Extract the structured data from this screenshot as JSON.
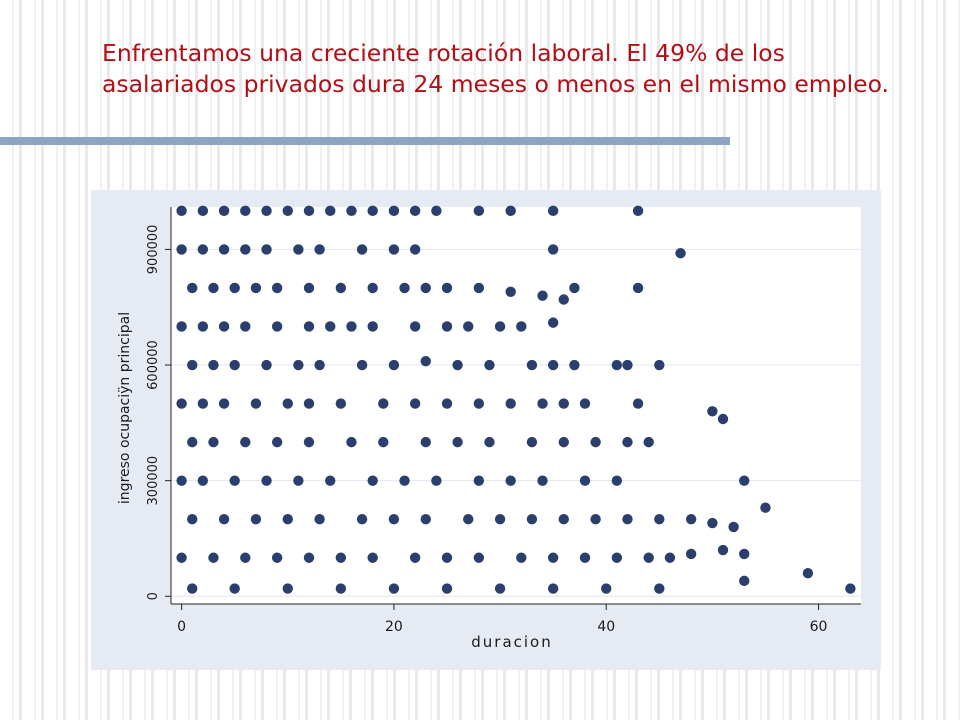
{
  "slide": {
    "title": "Enfrentamos una creciente rotación laboral. El 49% de los asalariados privados dura 24 meses o menos en el mismo empleo."
  },
  "colors": {
    "title": "#b00f16",
    "marker": "#2b3f6e",
    "panel": "#e6eaf2",
    "rule": "#8ea4c4"
  },
  "chart_data": {
    "type": "scatter",
    "xlabel": "duracion",
    "ylabel": "ingreso ocupaciÿn principal",
    "xlim": [
      -1,
      64
    ],
    "ylim": [
      -20000,
      1010000
    ],
    "xticks": [
      0,
      20,
      40,
      60
    ],
    "yticks": [
      0,
      300000,
      600000,
      900000
    ],
    "grid": "horizontal",
    "series": [
      {
        "color": "#2b3f6e",
        "points": [
          [
            0,
            1000000
          ],
          [
            2,
            1000000
          ],
          [
            4,
            1000000
          ],
          [
            6,
            1000000
          ],
          [
            8,
            1000000
          ],
          [
            10,
            1000000
          ],
          [
            12,
            1000000
          ],
          [
            14,
            1000000
          ],
          [
            16,
            1000000
          ],
          [
            18,
            1000000
          ],
          [
            20,
            1000000
          ],
          [
            22,
            1000000
          ],
          [
            24,
            1000000
          ],
          [
            28,
            1000000
          ],
          [
            31,
            1000000
          ],
          [
            35,
            1000000
          ],
          [
            43,
            1000000
          ],
          [
            0,
            900000
          ],
          [
            2,
            900000
          ],
          [
            4,
            900000
          ],
          [
            6,
            900000
          ],
          [
            8,
            900000
          ],
          [
            11,
            900000
          ],
          [
            13,
            900000
          ],
          [
            17,
            900000
          ],
          [
            20,
            900000
          ],
          [
            22,
            900000
          ],
          [
            35,
            900000
          ],
          [
            47,
            890000
          ],
          [
            1,
            800000
          ],
          [
            3,
            800000
          ],
          [
            5,
            800000
          ],
          [
            7,
            800000
          ],
          [
            9,
            800000
          ],
          [
            12,
            800000
          ],
          [
            15,
            800000
          ],
          [
            18,
            800000
          ],
          [
            21,
            800000
          ],
          [
            23,
            800000
          ],
          [
            25,
            800000
          ],
          [
            28,
            800000
          ],
          [
            31,
            790000
          ],
          [
            34,
            780000
          ],
          [
            36,
            770000
          ],
          [
            37,
            800000
          ],
          [
            43,
            800000
          ],
          [
            0,
            700000
          ],
          [
            2,
            700000
          ],
          [
            4,
            700000
          ],
          [
            6,
            700000
          ],
          [
            9,
            700000
          ],
          [
            12,
            700000
          ],
          [
            14,
            700000
          ],
          [
            16,
            700000
          ],
          [
            18,
            700000
          ],
          [
            22,
            700000
          ],
          [
            25,
            700000
          ],
          [
            27,
            700000
          ],
          [
            30,
            700000
          ],
          [
            32,
            700000
          ],
          [
            35,
            710000
          ],
          [
            1,
            600000
          ],
          [
            3,
            600000
          ],
          [
            5,
            600000
          ],
          [
            8,
            600000
          ],
          [
            11,
            600000
          ],
          [
            13,
            600000
          ],
          [
            17,
            600000
          ],
          [
            20,
            600000
          ],
          [
            23,
            610000
          ],
          [
            26,
            600000
          ],
          [
            29,
            600000
          ],
          [
            33,
            600000
          ],
          [
            35,
            600000
          ],
          [
            37,
            600000
          ],
          [
            41,
            600000
          ],
          [
            42,
            600000
          ],
          [
            45,
            600000
          ],
          [
            0,
            500000
          ],
          [
            2,
            500000
          ],
          [
            4,
            500000
          ],
          [
            7,
            500000
          ],
          [
            10,
            500000
          ],
          [
            12,
            500000
          ],
          [
            15,
            500000
          ],
          [
            19,
            500000
          ],
          [
            22,
            500000
          ],
          [
            25,
            500000
          ],
          [
            28,
            500000
          ],
          [
            31,
            500000
          ],
          [
            34,
            500000
          ],
          [
            36,
            500000
          ],
          [
            38,
            500000
          ],
          [
            43,
            500000
          ],
          [
            50,
            480000
          ],
          [
            51,
            460000
          ],
          [
            1,
            400000
          ],
          [
            3,
            400000
          ],
          [
            6,
            400000
          ],
          [
            9,
            400000
          ],
          [
            12,
            400000
          ],
          [
            16,
            400000
          ],
          [
            19,
            400000
          ],
          [
            23,
            400000
          ],
          [
            26,
            400000
          ],
          [
            29,
            400000
          ],
          [
            33,
            400000
          ],
          [
            36,
            400000
          ],
          [
            39,
            400000
          ],
          [
            42,
            400000
          ],
          [
            44,
            400000
          ],
          [
            0,
            300000
          ],
          [
            2,
            300000
          ],
          [
            5,
            300000
          ],
          [
            8,
            300000
          ],
          [
            11,
            300000
          ],
          [
            14,
            300000
          ],
          [
            18,
            300000
          ],
          [
            21,
            300000
          ],
          [
            24,
            300000
          ],
          [
            28,
            300000
          ],
          [
            31,
            300000
          ],
          [
            34,
            300000
          ],
          [
            38,
            300000
          ],
          [
            41,
            300000
          ],
          [
            53,
            300000
          ],
          [
            1,
            200000
          ],
          [
            4,
            200000
          ],
          [
            7,
            200000
          ],
          [
            10,
            200000
          ],
          [
            13,
            200000
          ],
          [
            17,
            200000
          ],
          [
            20,
            200000
          ],
          [
            23,
            200000
          ],
          [
            27,
            200000
          ],
          [
            30,
            200000
          ],
          [
            33,
            200000
          ],
          [
            36,
            200000
          ],
          [
            39,
            200000
          ],
          [
            42,
            200000
          ],
          [
            45,
            200000
          ],
          [
            48,
            200000
          ],
          [
            50,
            190000
          ],
          [
            52,
            180000
          ],
          [
            55,
            230000
          ],
          [
            0,
            100000
          ],
          [
            3,
            100000
          ],
          [
            6,
            100000
          ],
          [
            9,
            100000
          ],
          [
            12,
            100000
          ],
          [
            15,
            100000
          ],
          [
            18,
            100000
          ],
          [
            22,
            100000
          ],
          [
            25,
            100000
          ],
          [
            28,
            100000
          ],
          [
            32,
            100000
          ],
          [
            35,
            100000
          ],
          [
            38,
            100000
          ],
          [
            41,
            100000
          ],
          [
            44,
            100000
          ],
          [
            46,
            100000
          ],
          [
            48,
            110000
          ],
          [
            51,
            120000
          ],
          [
            53,
            110000
          ],
          [
            1,
            20000
          ],
          [
            5,
            20000
          ],
          [
            10,
            20000
          ],
          [
            15,
            20000
          ],
          [
            20,
            20000
          ],
          [
            25,
            20000
          ],
          [
            30,
            20000
          ],
          [
            35,
            20000
          ],
          [
            40,
            20000
          ],
          [
            45,
            20000
          ],
          [
            53,
            40000
          ],
          [
            59,
            60000
          ],
          [
            63,
            20000
          ]
        ]
      }
    ]
  }
}
